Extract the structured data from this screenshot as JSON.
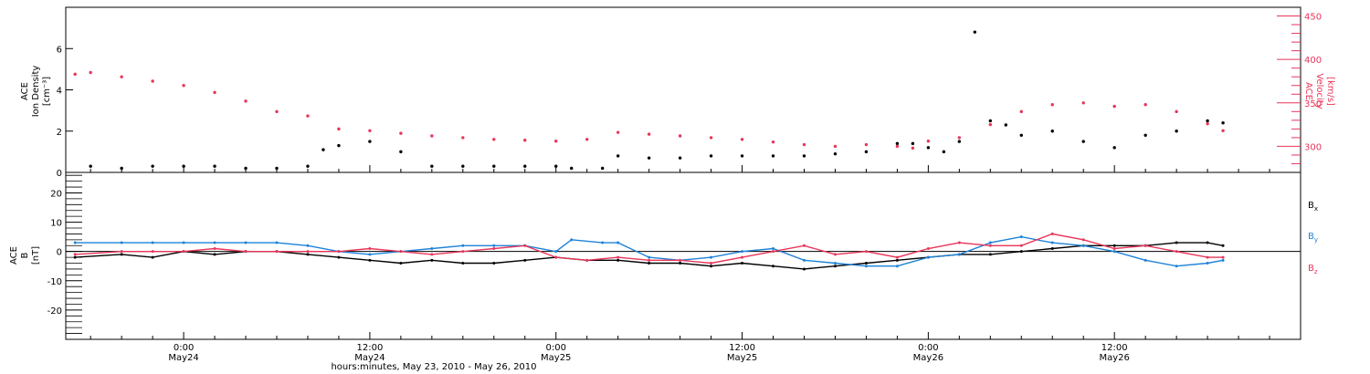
{
  "chart_data": [
    {
      "type": "scatter",
      "panel": "top",
      "ylabel_left": [
        "ACE",
        "Ion Density",
        "[cm⁻³]"
      ],
      "ylabel_right": [
        "ACE",
        "Velocity",
        "[km/s]"
      ],
      "ylim_left": [
        0,
        8
      ],
      "ylim_right": [
        270,
        460
      ],
      "yticks_left": [
        0,
        2,
        4,
        6
      ],
      "yticks_right": [
        300,
        350,
        400,
        450
      ],
      "series": [
        {
          "axis": "left",
          "color": "#000000",
          "points": [
            [
              -6,
              0.3
            ],
            [
              -4,
              0.2
            ],
            [
              -2,
              0.3
            ],
            [
              0,
              0.3
            ],
            [
              2,
              0.3
            ],
            [
              4,
              0.2
            ],
            [
              6,
              0.2
            ],
            [
              8,
              0.3
            ],
            [
              9,
              1.1
            ],
            [
              10,
              1.3
            ],
            [
              12,
              1.5
            ],
            [
              14,
              1.0
            ],
            [
              16,
              0.3
            ],
            [
              18,
              0.3
            ],
            [
              20,
              0.3
            ],
            [
              22,
              0.3
            ],
            [
              24,
              0.3
            ],
            [
              25,
              0.2
            ],
            [
              27,
              0.2
            ],
            [
              28,
              0.8
            ],
            [
              30,
              0.7
            ],
            [
              32,
              0.7
            ],
            [
              34,
              0.8
            ],
            [
              36,
              0.8
            ],
            [
              38,
              0.8
            ],
            [
              40,
              0.8
            ],
            [
              42,
              0.9
            ],
            [
              44,
              1.0
            ],
            [
              46,
              1.4
            ],
            [
              47,
              1.4
            ],
            [
              48,
              1.2
            ],
            [
              49,
              1.0
            ],
            [
              50,
              1.5
            ],
            [
              51,
              6.8
            ],
            [
              52,
              2.5
            ],
            [
              53,
              2.3
            ],
            [
              54,
              1.8
            ],
            [
              56,
              2.0
            ],
            [
              58,
              1.5
            ],
            [
              60,
              1.2
            ],
            [
              62,
              1.8
            ],
            [
              64,
              2.0
            ],
            [
              66,
              2.5
            ],
            [
              67,
              2.4
            ]
          ]
        },
        {
          "axis": "right",
          "color": "#e8355a",
          "points": [
            [
              -7,
              383
            ],
            [
              -6,
              385
            ],
            [
              -4,
              380
            ],
            [
              -2,
              375
            ],
            [
              0,
              370
            ],
            [
              2,
              362
            ],
            [
              4,
              352
            ],
            [
              6,
              340
            ],
            [
              8,
              335
            ],
            [
              10,
              320
            ],
            [
              12,
              318
            ],
            [
              14,
              315
            ],
            [
              16,
              312
            ],
            [
              18,
              310
            ],
            [
              20,
              308
            ],
            [
              22,
              307
            ],
            [
              24,
              306
            ],
            [
              26,
              308
            ],
            [
              28,
              316
            ],
            [
              30,
              314
            ],
            [
              32,
              312
            ],
            [
              34,
              310
            ],
            [
              36,
              308
            ],
            [
              38,
              305
            ],
            [
              40,
              302
            ],
            [
              42,
              300
            ],
            [
              44,
              302
            ],
            [
              46,
              300
            ],
            [
              47,
              298
            ],
            [
              48,
              306
            ],
            [
              50,
              310
            ],
            [
              52,
              325
            ],
            [
              54,
              340
            ],
            [
              56,
              348
            ],
            [
              58,
              350
            ],
            [
              60,
              346
            ],
            [
              62,
              348
            ],
            [
              64,
              340
            ],
            [
              66,
              326
            ],
            [
              67,
              318
            ]
          ]
        }
      ]
    },
    {
      "type": "scatter",
      "panel": "bottom",
      "ylabel_left": [
        "ACE",
        "B",
        "[nT]"
      ],
      "ylim": [
        -30,
        27
      ],
      "yticks": [
        20,
        10,
        0,
        -10,
        -20
      ],
      "series": [
        {
          "name": "Bx",
          "name_main": "B",
          "name_sub": "x",
          "color": "#000000",
          "points": [
            [
              -7,
              -2
            ],
            [
              -4,
              -1
            ],
            [
              -2,
              -2
            ],
            [
              0,
              0
            ],
            [
              2,
              -1
            ],
            [
              4,
              0
            ],
            [
              6,
              0
            ],
            [
              8,
              -1
            ],
            [
              10,
              -2
            ],
            [
              12,
              -3
            ],
            [
              14,
              -4
            ],
            [
              16,
              -3
            ],
            [
              18,
              -4
            ],
            [
              20,
              -4
            ],
            [
              22,
              -3
            ],
            [
              24,
              -2
            ],
            [
              26,
              -3
            ],
            [
              28,
              -3
            ],
            [
              30,
              -4
            ],
            [
              32,
              -4
            ],
            [
              34,
              -5
            ],
            [
              36,
              -4
            ],
            [
              38,
              -5
            ],
            [
              40,
              -6
            ],
            [
              42,
              -5
            ],
            [
              44,
              -4
            ],
            [
              46,
              -3
            ],
            [
              48,
              -2
            ],
            [
              50,
              -1
            ],
            [
              52,
              -1
            ],
            [
              54,
              0
            ],
            [
              56,
              1
            ],
            [
              58,
              2
            ],
            [
              60,
              2
            ],
            [
              62,
              2
            ],
            [
              64,
              3
            ],
            [
              66,
              3
            ],
            [
              67,
              2
            ]
          ]
        },
        {
          "name": "By",
          "name_main": "B",
          "name_sub": "y",
          "color": "#1e82d8",
          "points": [
            [
              -7,
              3
            ],
            [
              -4,
              3
            ],
            [
              -2,
              3
            ],
            [
              0,
              3
            ],
            [
              2,
              3
            ],
            [
              4,
              3
            ],
            [
              6,
              3
            ],
            [
              8,
              2
            ],
            [
              10,
              0
            ],
            [
              12,
              -1
            ],
            [
              14,
              0
            ],
            [
              16,
              1
            ],
            [
              18,
              2
            ],
            [
              20,
              2
            ],
            [
              22,
              2
            ],
            [
              24,
              0
            ],
            [
              25,
              4
            ],
            [
              27,
              3
            ],
            [
              28,
              3
            ],
            [
              30,
              -2
            ],
            [
              32,
              -3
            ],
            [
              34,
              -2
            ],
            [
              36,
              0
            ],
            [
              38,
              1
            ],
            [
              40,
              -3
            ],
            [
              42,
              -4
            ],
            [
              44,
              -5
            ],
            [
              46,
              -5
            ],
            [
              48,
              -2
            ],
            [
              50,
              -1
            ],
            [
              52,
              3
            ],
            [
              54,
              5
            ],
            [
              56,
              3
            ],
            [
              58,
              2
            ],
            [
              60,
              0
            ],
            [
              62,
              -3
            ],
            [
              64,
              -5
            ],
            [
              66,
              -4
            ],
            [
              67,
              -3
            ]
          ]
        },
        {
          "name": "Bz",
          "name_main": "B",
          "name_sub": "z",
          "color": "#e8355a",
          "points": [
            [
              -7,
              -1
            ],
            [
              -4,
              0
            ],
            [
              -2,
              0
            ],
            [
              0,
              0
            ],
            [
              2,
              1
            ],
            [
              4,
              0
            ],
            [
              6,
              0
            ],
            [
              8,
              0
            ],
            [
              10,
              0
            ],
            [
              12,
              1
            ],
            [
              14,
              0
            ],
            [
              16,
              -1
            ],
            [
              18,
              0
            ],
            [
              20,
              1
            ],
            [
              22,
              2
            ],
            [
              24,
              -2
            ],
            [
              26,
              -3
            ],
            [
              28,
              -2
            ],
            [
              30,
              -3
            ],
            [
              32,
              -3
            ],
            [
              34,
              -4
            ],
            [
              36,
              -2
            ],
            [
              38,
              0
            ],
            [
              40,
              2
            ],
            [
              42,
              -1
            ],
            [
              44,
              0
            ],
            [
              46,
              -2
            ],
            [
              48,
              1
            ],
            [
              50,
              3
            ],
            [
              52,
              2
            ],
            [
              54,
              2
            ],
            [
              56,
              6
            ],
            [
              58,
              4
            ],
            [
              60,
              1
            ],
            [
              62,
              2
            ],
            [
              64,
              0
            ],
            [
              66,
              -2
            ],
            [
              67,
              -2
            ]
          ]
        }
      ]
    }
  ],
  "x_axis": {
    "ticks": [
      {
        "hours": 0,
        "time": "0:00",
        "date": "May24"
      },
      {
        "hours": 12,
        "time": "12:00",
        "date": "May24"
      },
      {
        "hours": 24,
        "time": "0:00",
        "date": "May25"
      },
      {
        "hours": 36,
        "time": "12:00",
        "date": "May25"
      },
      {
        "hours": 48,
        "time": "0:00",
        "date": "May26"
      },
      {
        "hours": 60,
        "time": "12:00",
        "date": "May26"
      }
    ],
    "xlim": [
      -7.6,
      72
    ],
    "title": "hours:minutes, May 23, 2010 - May 26, 2010"
  }
}
